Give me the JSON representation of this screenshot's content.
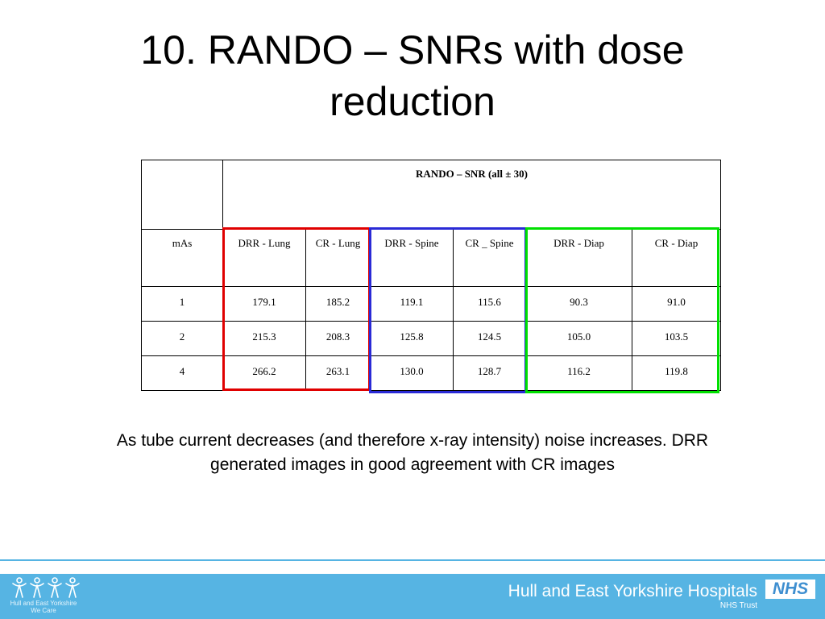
{
  "slide": {
    "title_line1": "10. RANDO – SNRs with dose",
    "title_line2": "reduction"
  },
  "table": {
    "header": "RANDO – SNR (all ± 30)",
    "columns": [
      "mAs",
      "DRR - Lung",
      "CR - Lung",
      "DRR - Spine",
      "CR _ Spine",
      "DRR - Diap",
      "CR - Diap"
    ],
    "rows": [
      [
        "1",
        "179.1",
        "185.2",
        "119.1",
        "115.6",
        "90.3",
        "91.0"
      ],
      [
        "2",
        "215.3",
        "208.3",
        "125.8",
        "124.5",
        "105.0",
        "103.5"
      ],
      [
        "4",
        "266.2",
        "263.1",
        "130.0",
        "128.7",
        "116.2",
        "119.8"
      ]
    ],
    "highlight_colors": {
      "lung": "#e00000",
      "spine": "#2a2ad6",
      "diap": "#00e000"
    }
  },
  "caption": "As tube current decreases (and therefore x-ray intensity) noise increases. DRR generated images in good agreement with CR images",
  "footer": {
    "org_name": "Hull and East Yorkshire Hospitals",
    "org_sub": "NHS Trust",
    "nhs_logo": "NHS",
    "left_logo_text": "Hull and East Yorkshire",
    "left_logo_sub": "We Care",
    "bar_color": "#56b4e3"
  }
}
